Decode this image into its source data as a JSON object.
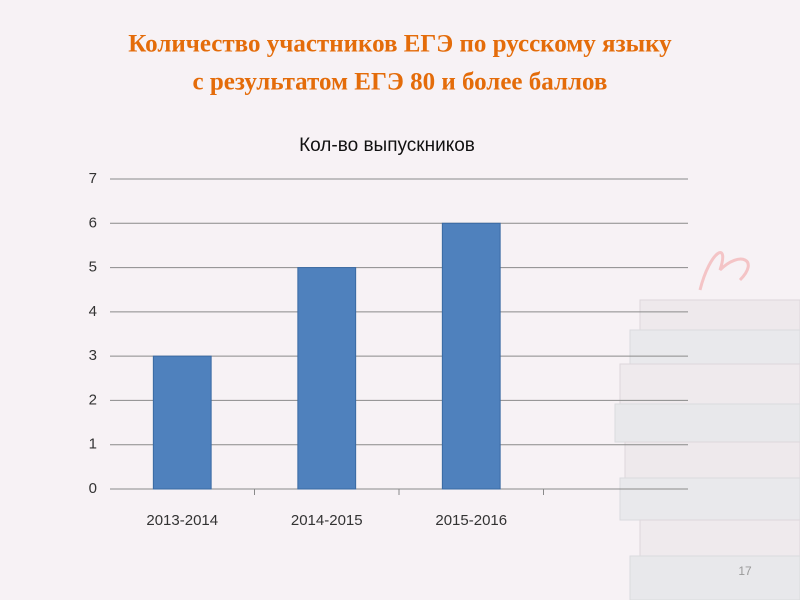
{
  "slide": {
    "title": [
      "Количество участников ЕГЭ  по русскому языку",
      "с результатом ЕГЭ 80 и более баллов"
    ],
    "page_number": "17"
  },
  "chart_data": {
    "type": "bar",
    "title": "Кол-во  выпускников",
    "categories": [
      "2013-2014",
      "2014-2015",
      "2015-2016",
      null
    ],
    "values": [
      3,
      5,
      6,
      null
    ],
    "color": "#4f81bd",
    "ylim": [
      0,
      7
    ],
    "yticks": [
      0,
      1,
      2,
      3,
      4,
      5,
      6,
      7
    ],
    "grid": true
  }
}
